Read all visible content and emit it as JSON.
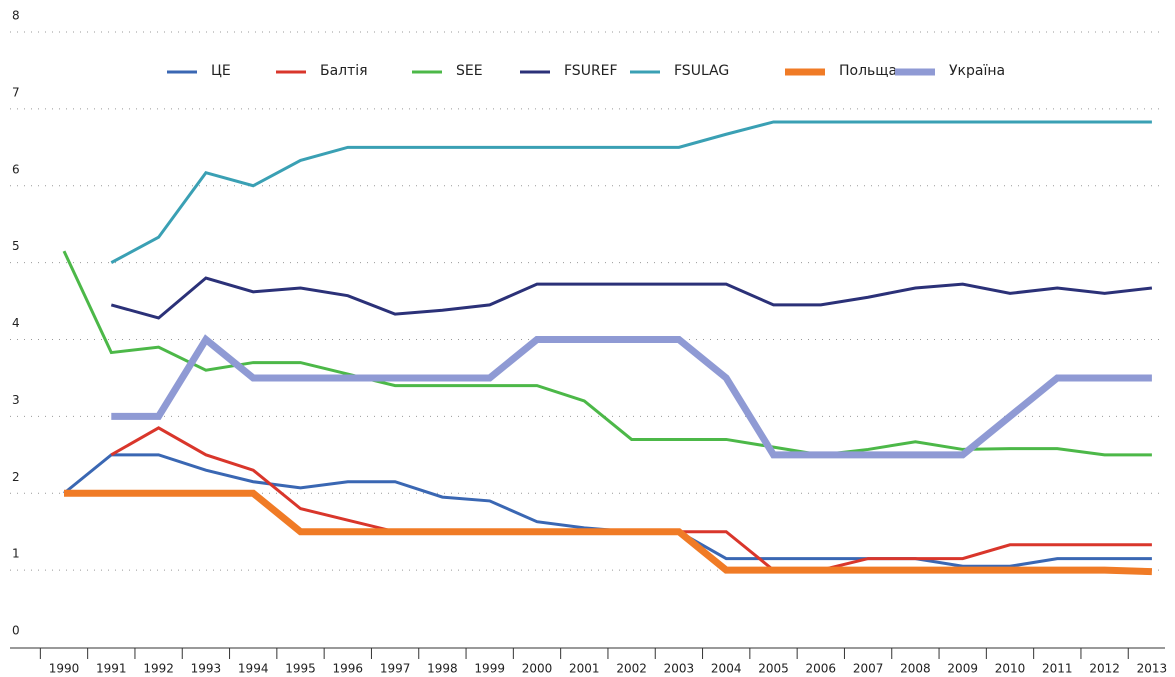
{
  "chart_data": {
    "type": "line",
    "categories": [
      "1990",
      "1991",
      "1992",
      "1993",
      "1994",
      "1995",
      "1996",
      "1997",
      "1998",
      "1999",
      "2000",
      "2001",
      "2002",
      "2003",
      "2004",
      "2005",
      "2006",
      "2007",
      "2008",
      "2009",
      "2010",
      "2011",
      "2012",
      "2013"
    ],
    "ylim": [
      0,
      8
    ],
    "yticks": [
      0,
      1,
      2,
      3,
      4,
      5,
      6,
      7,
      8
    ],
    "grid": true,
    "legend": "top",
    "series": [
      {
        "name": "ЦЕ",
        "color": "#3a67b3",
        "line_width": 3,
        "values": [
          2,
          2.5,
          2.5,
          2.3,
          2.15,
          2.07,
          2.15,
          2.15,
          1.95,
          1.9,
          1.63,
          1.55,
          1.5,
          1.5,
          1.15,
          1.15,
          1.15,
          1.15,
          1.15,
          1.05,
          1.05,
          1.15,
          1.15,
          1.15
        ]
      },
      {
        "name": "Балтія",
        "color": "#d9362b",
        "line_width": 3,
        "values": [
          null,
          2.5,
          2.85,
          2.5,
          2.3,
          1.8,
          1.65,
          1.5,
          1.5,
          1.5,
          1.5,
          1.5,
          1.5,
          1.5,
          1.5,
          1,
          1,
          1.15,
          1.15,
          1.15,
          1.33,
          1.33,
          1.33,
          1.33
        ]
      },
      {
        "name": "SEE",
        "color": "#4cb848",
        "line_width": 3,
        "values": [
          5.15,
          3.83,
          3.9,
          3.6,
          3.7,
          3.7,
          3.55,
          3.4,
          3.4,
          3.4,
          3.4,
          3.2,
          2.7,
          2.7,
          2.7,
          2.6,
          2.5,
          2.57,
          2.67,
          2.57,
          2.58,
          2.58,
          2.5,
          2.5
        ]
      },
      {
        "name": "FSUREF",
        "color": "#2b3178",
        "line_width": 3,
        "values": [
          null,
          4.45,
          4.28,
          4.8,
          4.62,
          4.67,
          4.57,
          4.33,
          4.38,
          4.45,
          4.72,
          4.72,
          4.72,
          4.72,
          4.72,
          4.45,
          4.45,
          4.55,
          4.67,
          4.72,
          4.6,
          4.67,
          4.6,
          4.67
        ]
      },
      {
        "name": "FSULAG",
        "color": "#3aa0b4",
        "line_width": 3,
        "values": [
          null,
          5,
          5.33,
          6.17,
          6,
          6.33,
          6.5,
          6.5,
          6.5,
          6.5,
          6.5,
          6.5,
          6.5,
          6.5,
          6.67,
          6.83,
          6.83,
          6.83,
          6.83,
          6.83,
          6.83,
          6.83,
          6.83,
          6.83
        ]
      },
      {
        "name": "Польща",
        "color": "#f07b26",
        "line_width": 7,
        "values": [
          2,
          2,
          2,
          2,
          2,
          1.5,
          1.5,
          1.5,
          1.5,
          1.5,
          1.5,
          1.5,
          1.5,
          1.5,
          1,
          1,
          1,
          1,
          1,
          1,
          1,
          1,
          1,
          0.98
        ]
      },
      {
        "name": "Україна",
        "color": "#8f9ad4",
        "line_width": 7,
        "values": [
          null,
          3,
          3,
          4,
          3.5,
          3.5,
          3.5,
          3.5,
          3.5,
          3.5,
          4,
          4,
          4,
          4,
          3.5,
          2.5,
          2.5,
          2.5,
          2.5,
          2.5,
          3,
          3.5,
          3.5,
          3.5
        ]
      }
    ]
  }
}
